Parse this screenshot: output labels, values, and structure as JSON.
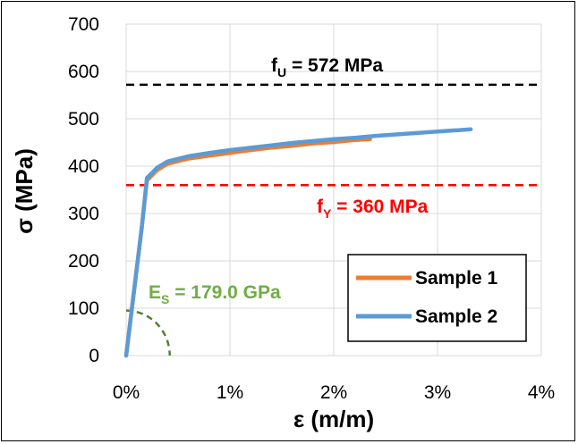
{
  "chart_data": {
    "type": "line",
    "xlabel": "ε (m/m)",
    "ylabel": "σ (MPa)",
    "xlim": [
      0,
      4
    ],
    "ylim": [
      0,
      700
    ],
    "xticks": [
      0,
      1,
      2,
      3,
      4
    ],
    "xtick_labels": [
      "0%",
      "1%",
      "2%",
      "3%",
      "4%"
    ],
    "yticks": [
      0,
      100,
      200,
      300,
      400,
      500,
      600,
      700
    ],
    "ytick_labels": [
      "0",
      "100",
      "200",
      "300",
      "400",
      "500",
      "600",
      "700"
    ],
    "grid": true,
    "legend_position": "bottom-right",
    "series": [
      {
        "name": "Sample 1",
        "color": "#ED7D31",
        "x": [
          0,
          0.05,
          0.1,
          0.15,
          0.2,
          0.3,
          0.4,
          0.6,
          0.8,
          1.0,
          1.2,
          1.4,
          1.6,
          1.8,
          2.0,
          2.2,
          2.35
        ],
        "y": [
          0,
          90,
          180,
          270,
          370,
          392,
          405,
          416,
          422,
          428,
          434,
          439,
          443,
          448,
          451,
          455,
          457
        ]
      },
      {
        "name": "Sample 2",
        "color": "#5B9BD5",
        "x": [
          0,
          0.05,
          0.1,
          0.15,
          0.2,
          0.3,
          0.4,
          0.6,
          0.8,
          1.0,
          1.2,
          1.4,
          1.6,
          1.8,
          2.0,
          2.2,
          2.4,
          2.6,
          2.8,
          3.0,
          3.2,
          3.32
        ],
        "y": [
          0,
          90,
          180,
          270,
          375,
          397,
          410,
          421,
          428,
          434,
          439,
          444,
          449,
          453,
          457,
          460,
          464,
          467,
          470,
          473,
          476,
          478
        ]
      }
    ],
    "reference_lines": [
      {
        "id": "fu",
        "y": 572,
        "color": "#000000"
      },
      {
        "id": "fy",
        "y": 360,
        "color": "#FF0000"
      }
    ],
    "modulus_arc": {
      "color": "#548235",
      "radius_x": 0.42,
      "radius_y": 95
    },
    "annotations": {
      "fu": {
        "prefix": "f",
        "sub": "U",
        "suffix": " = 572 MPa",
        "color": "#000000"
      },
      "fy": {
        "prefix": "f",
        "sub": "Y",
        "suffix": " = 360 MPa",
        "color": "#FF0000"
      },
      "es": {
        "prefix": "E",
        "sub": "S",
        "suffix": " = 179.0 GPa",
        "color": "#70AD47"
      }
    }
  }
}
